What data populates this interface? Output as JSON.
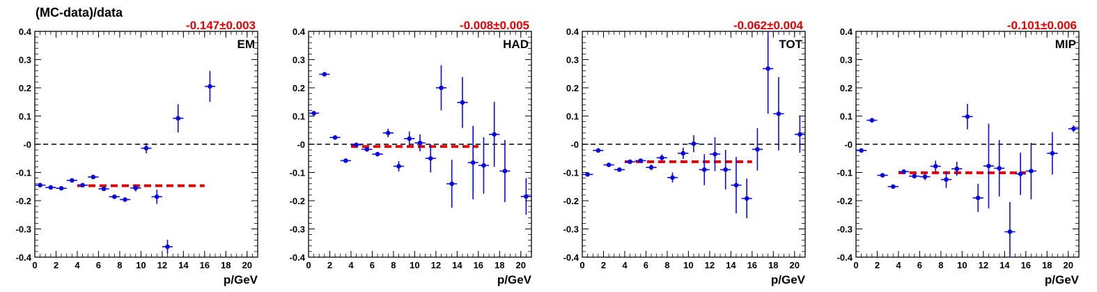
{
  "chart_data": [
    {
      "type": "scatter",
      "title": "EM",
      "ylabel": "(MC-data)/data",
      "xlabel": "p/GeV",
      "fit_label": "-0.147±0.003",
      "fit": {
        "value": -0.147,
        "x_range": [
          4,
          16
        ]
      },
      "reference_line": 0,
      "xlim": [
        0,
        21
      ],
      "ylim": [
        -0.4,
        0.4
      ],
      "xticks": [
        "0",
        "2",
        "4",
        "6",
        "8",
        "10",
        "12",
        "14",
        "16",
        "18",
        "20"
      ],
      "yticks": [
        "0.4",
        "0.3",
        "0.2",
        "0.1",
        "-0",
        "-0.1",
        "-0.2",
        "-0.3",
        "-0.4"
      ],
      "points": [
        {
          "x": 0.5,
          "y": -0.145,
          "err": 0.005
        },
        {
          "x": 1.5,
          "y": -0.153,
          "err": 0.004
        },
        {
          "x": 2.5,
          "y": -0.156,
          "err": 0.004
        },
        {
          "x": 3.5,
          "y": -0.128,
          "err": 0.004
        },
        {
          "x": 4.5,
          "y": -0.145,
          "err": 0.005
        },
        {
          "x": 5.5,
          "y": -0.116,
          "err": 0.004
        },
        {
          "x": 6.5,
          "y": -0.158,
          "err": 0.005
        },
        {
          "x": 7.5,
          "y": -0.186,
          "err": 0.006
        },
        {
          "x": 8.5,
          "y": -0.196,
          "err": 0.007
        },
        {
          "x": 9.5,
          "y": -0.155,
          "err": 0.012
        },
        {
          "x": 10.5,
          "y": -0.014,
          "err": 0.018
        },
        {
          "x": 11.5,
          "y": -0.186,
          "err": 0.025
        },
        {
          "x": 12.5,
          "y": -0.363,
          "err": 0.025
        },
        {
          "x": 13.5,
          "y": 0.092,
          "err": 0.05
        },
        {
          "x": 16.5,
          "y": 0.205,
          "err": 0.055
        }
      ]
    },
    {
      "type": "scatter",
      "title": "HAD",
      "ylabel": "",
      "xlabel": "p/GeV",
      "fit_label": "-0.008±0.005",
      "fit": {
        "value": -0.008,
        "x_range": [
          4,
          16
        ]
      },
      "reference_line": 0,
      "xlim": [
        0,
        21
      ],
      "ylim": [
        -0.4,
        0.4
      ],
      "xticks": [
        "0",
        "2",
        "4",
        "6",
        "8",
        "10",
        "12",
        "14",
        "16",
        "18",
        "20"
      ],
      "yticks": [
        "0.4",
        "0.3",
        "0.2",
        "0.1",
        "-0",
        "-0.1",
        "-0.2",
        "-0.3",
        "-0.4"
      ],
      "points": [
        {
          "x": 0.5,
          "y": 0.11,
          "err": 0.005
        },
        {
          "x": 1.5,
          "y": 0.248,
          "err": 0.004
        },
        {
          "x": 2.5,
          "y": 0.024,
          "err": 0.004
        },
        {
          "x": 3.5,
          "y": -0.058,
          "err": 0.004
        },
        {
          "x": 4.5,
          "y": -0.002,
          "err": 0.005
        },
        {
          "x": 5.5,
          "y": -0.018,
          "err": 0.006
        },
        {
          "x": 6.5,
          "y": -0.035,
          "err": 0.007
        },
        {
          "x": 7.5,
          "y": 0.04,
          "err": 0.015
        },
        {
          "x": 8.5,
          "y": -0.078,
          "err": 0.018
        },
        {
          "x": 9.5,
          "y": 0.02,
          "err": 0.025
        },
        {
          "x": 10.5,
          "y": 0.005,
          "err": 0.03
        },
        {
          "x": 11.5,
          "y": -0.05,
          "err": 0.05
        },
        {
          "x": 12.5,
          "y": 0.2,
          "err": 0.08
        },
        {
          "x": 13.5,
          "y": -0.14,
          "err": 0.085
        },
        {
          "x": 14.5,
          "y": 0.148,
          "err": 0.09
        },
        {
          "x": 15.5,
          "y": -0.065,
          "err": 0.13
        },
        {
          "x": 16.5,
          "y": -0.075,
          "err": 0.1
        },
        {
          "x": 17.5,
          "y": 0.035,
          "err": 0.115
        },
        {
          "x": 18.5,
          "y": -0.095,
          "err": 0.11
        },
        {
          "x": 20.5,
          "y": -0.185,
          "err": 0.065
        }
      ]
    },
    {
      "type": "scatter",
      "title": "TOT",
      "ylabel": "",
      "xlabel": "p/GeV",
      "fit_label": "-0.062±0.004",
      "fit": {
        "value": -0.062,
        "x_range": [
          4,
          16
        ]
      },
      "reference_line": 0,
      "xlim": [
        0,
        21
      ],
      "ylim": [
        -0.4,
        0.4
      ],
      "xticks": [
        "0",
        "2",
        "4",
        "6",
        "8",
        "10",
        "12",
        "14",
        "16",
        "18",
        "20"
      ],
      "yticks": [
        "0.4",
        "0.3",
        "0.2",
        "0.1",
        "-0",
        "-0.1",
        "-0.2",
        "-0.3",
        "-0.4"
      ],
      "points": [
        {
          "x": 0.5,
          "y": -0.107,
          "err": 0.004
        },
        {
          "x": 1.5,
          "y": -0.022,
          "err": 0.004
        },
        {
          "x": 2.5,
          "y": -0.073,
          "err": 0.004
        },
        {
          "x": 3.5,
          "y": -0.09,
          "err": 0.004
        },
        {
          "x": 4.5,
          "y": -0.062,
          "err": 0.005
        },
        {
          "x": 5.5,
          "y": -0.058,
          "err": 0.006
        },
        {
          "x": 6.5,
          "y": -0.082,
          "err": 0.01
        },
        {
          "x": 7.5,
          "y": -0.048,
          "err": 0.012
        },
        {
          "x": 8.5,
          "y": -0.118,
          "err": 0.018
        },
        {
          "x": 9.5,
          "y": -0.032,
          "err": 0.02
        },
        {
          "x": 10.5,
          "y": 0.002,
          "err": 0.03
        },
        {
          "x": 11.5,
          "y": -0.09,
          "err": 0.055
        },
        {
          "x": 12.5,
          "y": -0.035,
          "err": 0.06
        },
        {
          "x": 13.5,
          "y": -0.09,
          "err": 0.07
        },
        {
          "x": 14.5,
          "y": -0.145,
          "err": 0.1
        },
        {
          "x": 15.5,
          "y": -0.192,
          "err": 0.07
        },
        {
          "x": 16.5,
          "y": -0.018,
          "err": 0.075
        },
        {
          "x": 17.5,
          "y": 0.268,
          "err": 0.16
        },
        {
          "x": 18.5,
          "y": 0.108,
          "err": 0.13
        },
        {
          "x": 20.5,
          "y": 0.035,
          "err": 0.065
        }
      ]
    },
    {
      "type": "scatter",
      "title": "MIP",
      "ylabel": "",
      "xlabel": "p/GeV",
      "fit_label": "-0.101±0.006",
      "fit": {
        "value": -0.101,
        "x_range": [
          4,
          16
        ]
      },
      "reference_line": 0,
      "xlim": [
        0,
        21
      ],
      "ylim": [
        -0.4,
        0.4
      ],
      "xticks": [
        "0",
        "2",
        "4",
        "6",
        "8",
        "10",
        "12",
        "14",
        "16",
        "18",
        "20"
      ],
      "yticks": [
        "0.4",
        "0.3",
        "0.2",
        "0.1",
        "-0",
        "-0.1",
        "-0.2",
        "-0.3",
        "-0.4"
      ],
      "points": [
        {
          "x": 0.5,
          "y": -0.022,
          "err": 0.005
        },
        {
          "x": 1.5,
          "y": 0.085,
          "err": 0.004
        },
        {
          "x": 2.5,
          "y": -0.11,
          "err": 0.004
        },
        {
          "x": 3.5,
          "y": -0.15,
          "err": 0.004
        },
        {
          "x": 4.5,
          "y": -0.097,
          "err": 0.005
        },
        {
          "x": 5.5,
          "y": -0.113,
          "err": 0.008
        },
        {
          "x": 6.5,
          "y": -0.115,
          "err": 0.012
        },
        {
          "x": 7.5,
          "y": -0.078,
          "err": 0.02
        },
        {
          "x": 8.5,
          "y": -0.125,
          "err": 0.03
        },
        {
          "x": 9.5,
          "y": -0.087,
          "err": 0.025
        },
        {
          "x": 10.5,
          "y": 0.098,
          "err": 0.045
        },
        {
          "x": 11.5,
          "y": -0.19,
          "err": 0.05
        },
        {
          "x": 12.5,
          "y": -0.077,
          "err": 0.15
        },
        {
          "x": 13.5,
          "y": -0.085,
          "err": 0.1
        },
        {
          "x": 14.5,
          "y": -0.31,
          "err": 0.105
        },
        {
          "x": 15.5,
          "y": -0.105,
          "err": 0.075
        },
        {
          "x": 16.5,
          "y": -0.095,
          "err": 0.1
        },
        {
          "x": 18.5,
          "y": -0.032,
          "err": 0.075
        },
        {
          "x": 20.5,
          "y": 0.055,
          "err": 0.012
        }
      ]
    }
  ],
  "colors": {
    "points": "#0a0adc",
    "fit": "#e00000",
    "fit_label": "#e00000",
    "axis": "#000000"
  }
}
